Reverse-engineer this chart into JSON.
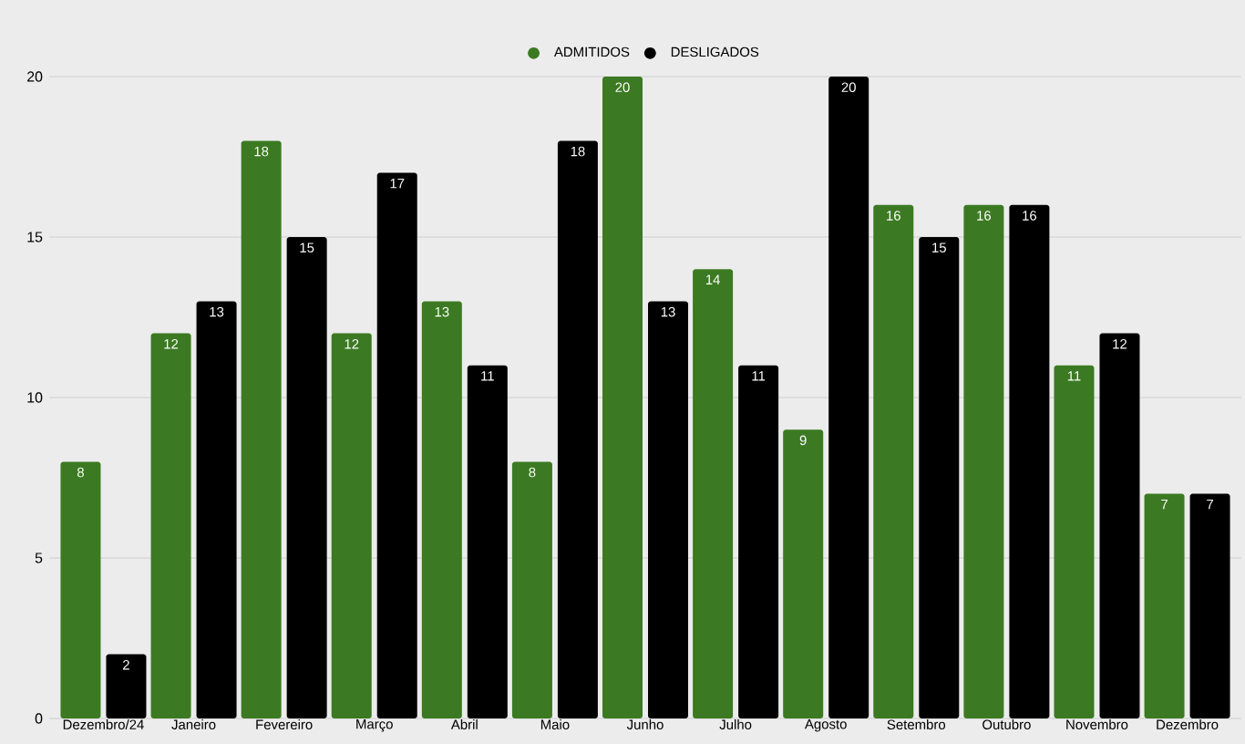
{
  "chart_data": {
    "type": "bar",
    "categories": [
      "Dezembro/24",
      "Janeiro",
      "Fevereiro",
      "Março",
      "Abril",
      "Maio",
      "Junho",
      "Julho",
      "Agosto",
      "Setembro",
      "Outubro",
      "Novembro",
      "Dezembro"
    ],
    "series": [
      {
        "name": "ADMITIDOS",
        "color": "#3b7a22",
        "values": [
          8,
          12,
          18,
          12,
          13,
          8,
          20,
          14,
          9,
          16,
          16,
          11,
          7
        ]
      },
      {
        "name": "DESLIGADOS",
        "color": "#000000",
        "values": [
          2,
          13,
          15,
          17,
          11,
          18,
          13,
          11,
          20,
          15,
          16,
          12,
          7
        ]
      }
    ],
    "ylim": [
      0,
      20
    ],
    "yticks": [
      0,
      5,
      10,
      15,
      20
    ],
    "grid": "y",
    "legend": "top",
    "data_labels": true
  }
}
